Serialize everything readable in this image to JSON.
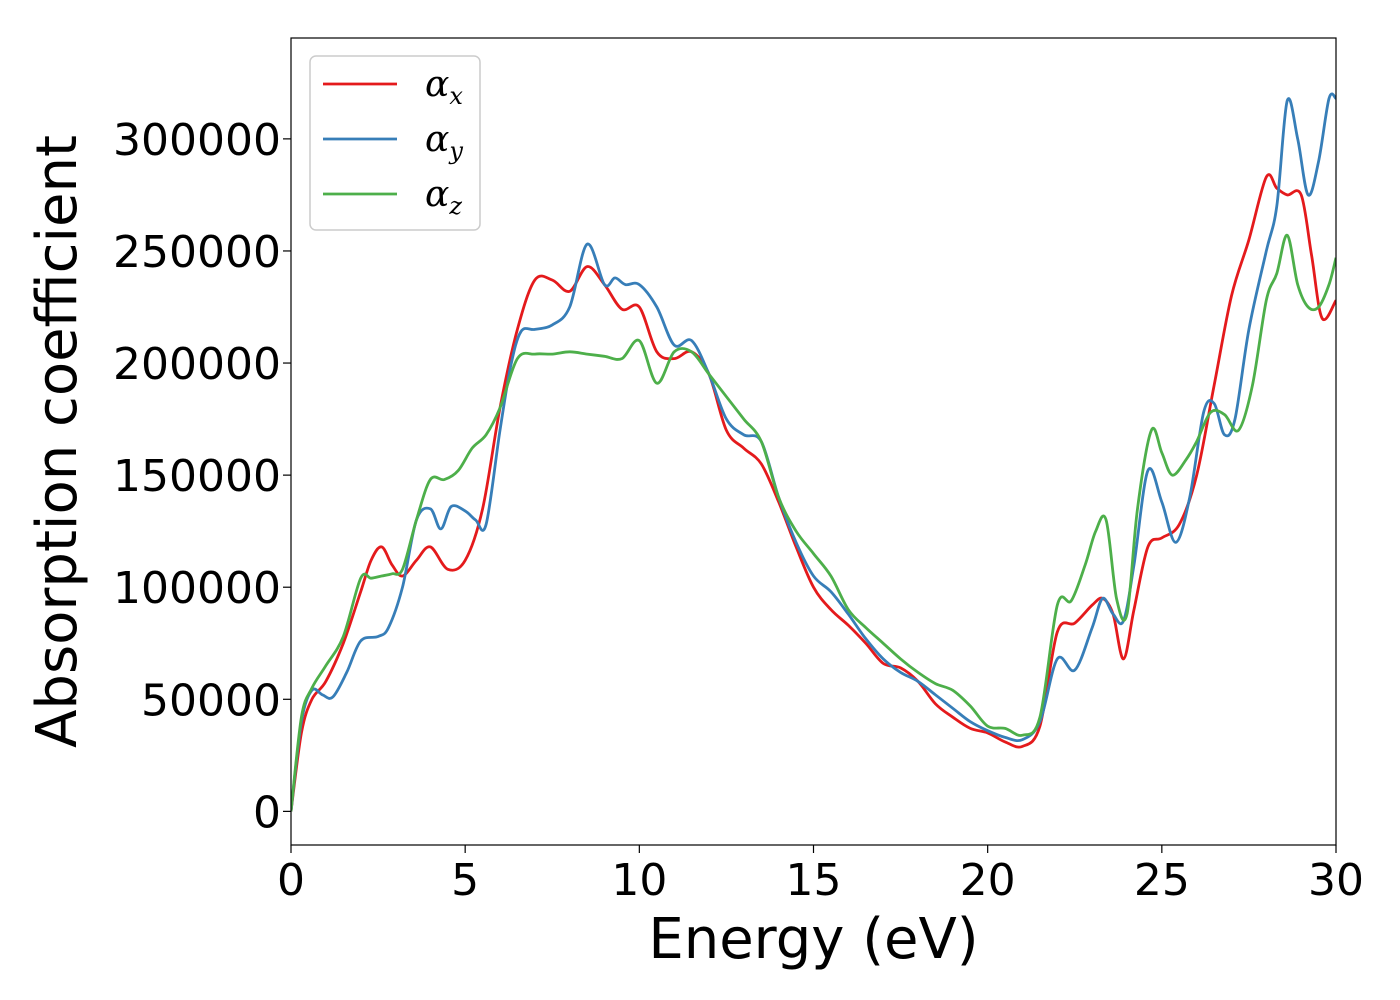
{
  "chart_data": {
    "type": "line",
    "title": "",
    "xlabel": "Energy (eV)",
    "ylabel": "Absorption coefficient",
    "xlim": [
      0,
      30
    ],
    "ylim": [
      -15000,
      345000
    ],
    "xticks": [
      0,
      5,
      10,
      15,
      20,
      25,
      30
    ],
    "yticks": [
      0,
      50000,
      100000,
      150000,
      200000,
      250000,
      300000
    ],
    "grid": false,
    "legend": "top-left",
    "series": [
      {
        "name": "α_x",
        "symbol": "α",
        "subscript": "x",
        "color": "#e41a1c",
        "x": [
          0,
          0.3,
          0.6,
          1.0,
          1.5,
          2.0,
          2.3,
          2.6,
          2.9,
          3.2,
          3.6,
          4.0,
          4.5,
          5.0,
          5.5,
          6.0,
          6.5,
          7.0,
          7.5,
          8.0,
          8.5,
          9.0,
          9.5,
          10.0,
          10.5,
          11.0,
          11.5,
          12.0,
          12.5,
          13.0,
          13.5,
          14.0,
          14.5,
          15.0,
          15.5,
          16.0,
          16.5,
          17.0,
          17.5,
          18.0,
          18.5,
          19.0,
          19.5,
          20.0,
          20.5,
          21.0,
          21.5,
          22.0,
          22.5,
          23.0,
          23.3,
          23.6,
          23.9,
          24.2,
          24.6,
          25.0,
          25.5,
          26.0,
          26.5,
          27.0,
          27.5,
          28.0,
          28.3,
          28.6,
          29.0,
          29.3,
          29.6,
          30.0
        ],
        "y": [
          0,
          35000,
          50000,
          58000,
          75000,
          98000,
          112000,
          118000,
          110000,
          105000,
          112000,
          118000,
          108000,
          112000,
          135000,
          180000,
          215000,
          237000,
          237000,
          232000,
          243000,
          235000,
          224000,
          225000,
          205000,
          202000,
          205000,
          195000,
          170000,
          162000,
          155000,
          138000,
          118000,
          100000,
          90000,
          83000,
          75000,
          66000,
          64000,
          58000,
          48000,
          42000,
          37000,
          35000,
          31000,
          29000,
          38000,
          80000,
          84000,
          92000,
          95000,
          88000,
          68000,
          90000,
          118000,
          122000,
          128000,
          150000,
          190000,
          230000,
          255000,
          283000,
          278000,
          275000,
          275000,
          248000,
          220000,
          228000
        ]
      },
      {
        "name": "α_y",
        "symbol": "α",
        "subscript": "y",
        "color": "#377eb8",
        "x": [
          0,
          0.3,
          0.6,
          0.9,
          1.2,
          1.6,
          2.0,
          2.5,
          2.8,
          3.2,
          3.6,
          4.0,
          4.3,
          4.6,
          5.0,
          5.3,
          5.6,
          6.0,
          6.3,
          6.6,
          7.0,
          7.5,
          8.0,
          8.5,
          9.0,
          9.3,
          9.6,
          10.0,
          10.5,
          11.0,
          11.5,
          12.0,
          12.5,
          13.0,
          13.5,
          14.0,
          14.5,
          15.0,
          15.5,
          16.0,
          16.5,
          17.0,
          17.5,
          18.0,
          18.5,
          19.0,
          19.5,
          20.0,
          20.5,
          21.0,
          21.5,
          22.0,
          22.5,
          23.0,
          23.3,
          23.6,
          23.9,
          24.2,
          24.6,
          25.0,
          25.4,
          25.8,
          26.2,
          26.5,
          26.8,
          27.1,
          27.5,
          28.0,
          28.3,
          28.6,
          28.9,
          29.2,
          29.5,
          29.8,
          30.0
        ],
        "y": [
          0,
          40000,
          54000,
          52000,
          51000,
          62000,
          76000,
          78000,
          82000,
          100000,
          130000,
          135000,
          126000,
          136000,
          134000,
          130000,
          128000,
          170000,
          198000,
          214000,
          215000,
          217000,
          225000,
          253000,
          235000,
          238000,
          235000,
          235000,
          225000,
          208000,
          210000,
          195000,
          175000,
          168000,
          165000,
          140000,
          120000,
          105000,
          98000,
          88000,
          77000,
          68000,
          62000,
          58000,
          52000,
          46000,
          40000,
          36000,
          33000,
          32000,
          40000,
          68000,
          63000,
          82000,
          95000,
          88000,
          85000,
          110000,
          152000,
          138000,
          120000,
          140000,
          178000,
          182000,
          168000,
          175000,
          215000,
          250000,
          270000,
          317000,
          300000,
          275000,
          290000,
          318000,
          318000
        ]
      },
      {
        "name": "α_z",
        "symbol": "α",
        "subscript": "z",
        "color": "#4daf4a",
        "x": [
          0,
          0.3,
          0.6,
          1.0,
          1.5,
          2.0,
          2.3,
          2.6,
          2.9,
          3.2,
          3.6,
          4.0,
          4.4,
          4.8,
          5.2,
          5.6,
          6.0,
          6.5,
          7.0,
          7.5,
          8.0,
          8.5,
          9.0,
          9.5,
          10.0,
          10.5,
          11.0,
          11.5,
          12.0,
          12.5,
          13.0,
          13.5,
          14.0,
          14.5,
          15.0,
          15.5,
          16.0,
          16.5,
          17.0,
          17.5,
          18.0,
          18.5,
          19.0,
          19.5,
          20.0,
          20.5,
          21.0,
          21.5,
          22.0,
          22.4,
          22.8,
          23.1,
          23.4,
          23.7,
          24.0,
          24.3,
          24.7,
          25.0,
          25.3,
          25.7,
          26.0,
          26.4,
          26.8,
          27.2,
          27.6,
          28.0,
          28.3,
          28.6,
          28.9,
          29.2,
          29.5,
          29.8,
          30.0
        ],
        "y": [
          0,
          42000,
          55000,
          65000,
          78000,
          104000,
          104000,
          105000,
          106000,
          108000,
          130000,
          148000,
          148000,
          152000,
          162000,
          168000,
          180000,
          202000,
          204000,
          204000,
          205000,
          204000,
          203000,
          202000,
          210000,
          191000,
          205000,
          205000,
          195000,
          185000,
          175000,
          165000,
          140000,
          125000,
          115000,
          105000,
          90000,
          82000,
          75000,
          68000,
          62000,
          57000,
          54000,
          47000,
          38000,
          37000,
          34000,
          42000,
          92000,
          94000,
          110000,
          125000,
          130000,
          95000,
          88000,
          135000,
          170000,
          160000,
          150000,
          157000,
          165000,
          178000,
          177000,
          170000,
          190000,
          228000,
          240000,
          257000,
          235000,
          225000,
          225000,
          235000,
          247000
        ]
      }
    ]
  }
}
